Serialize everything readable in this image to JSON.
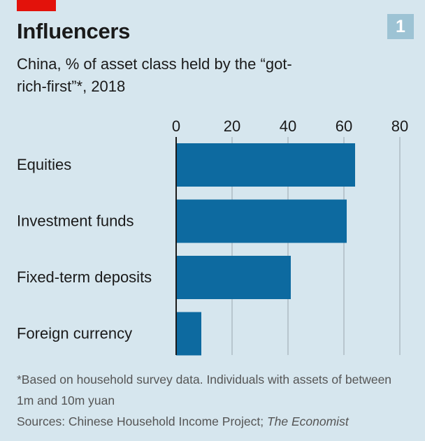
{
  "header": {
    "title": "Influencers",
    "chart_number": "1",
    "subtitle": "China, % of asset class held by the “got-rich-first”*, 2018"
  },
  "footer": {
    "note": "*Based on household survey data. Individuals with assets of between 1m and 10m yuan",
    "sources_prefix": "Sources: Chinese Household Income Project; ",
    "sources_publication": "The Economist"
  },
  "colors": {
    "bar": "#0d6aa0",
    "gridline": "#a8b6bd",
    "axis": "#1a1a1a",
    "background": "#d6e6ee",
    "red_tab": "#e3120b",
    "badge": "#9dc3d4"
  },
  "chart_data": {
    "type": "bar",
    "orientation": "horizontal",
    "categories": [
      "Equities",
      "Investment funds",
      "Fixed-term deposits",
      "Foreign currency"
    ],
    "values": [
      64,
      61,
      41,
      9
    ],
    "xlim": [
      0,
      80
    ],
    "xticks": [
      0,
      20,
      40,
      60,
      80
    ],
    "tick_position": "top",
    "grid": true
  }
}
